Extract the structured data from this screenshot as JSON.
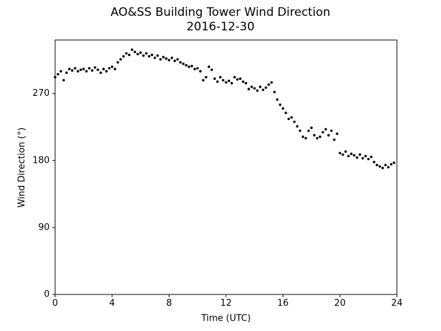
{
  "chart_data": {
    "type": "scatter",
    "title": "AO&SS Building Tower Wind Direction",
    "subtitle": "2016-12-30",
    "x_label": "Time (UTC)",
    "y_label": "Wind Direction (°)",
    "color": "#000000",
    "xlim": [
      0,
      24
    ],
    "xticks": [
      0,
      4,
      8,
      12,
      16,
      20,
      24
    ],
    "ylim": [
      0,
      342
    ],
    "yticks": [
      0,
      90,
      180,
      270
    ],
    "x": [
      0,
      0.2,
      0.4,
      0.6,
      0.8,
      1.0,
      1.2,
      1.4,
      1.6,
      1.8,
      2.0,
      2.2,
      2.4,
      2.6,
      2.8,
      3.0,
      3.2,
      3.4,
      3.6,
      3.8,
      4.0,
      4.2,
      4.4,
      4.6,
      4.8,
      5.0,
      5.2,
      5.4,
      5.6,
      5.8,
      6.0,
      6.2,
      6.4,
      6.6,
      6.8,
      7.0,
      7.2,
      7.4,
      7.6,
      7.8,
      8.0,
      8.2,
      8.4,
      8.6,
      8.8,
      9.0,
      9.2,
      9.4,
      9.6,
      9.8,
      10.0,
      10.2,
      10.4,
      10.6,
      10.8,
      11.0,
      11.2,
      11.4,
      11.6,
      11.8,
      12.0,
      12.2,
      12.4,
      12.6,
      12.8,
      13.0,
      13.2,
      13.4,
      13.6,
      13.8,
      14.0,
      14.2,
      14.4,
      14.6,
      14.8,
      15.0,
      15.2,
      15.4,
      15.6,
      15.8,
      16.0,
      16.2,
      16.4,
      16.6,
      16.8,
      17.0,
      17.2,
      17.4,
      17.6,
      17.8,
      18.0,
      18.2,
      18.4,
      18.6,
      18.8,
      19.0,
      19.2,
      19.4,
      19.6,
      19.8,
      20.0,
      20.2,
      20.4,
      20.6,
      20.8,
      21.0,
      21.2,
      21.4,
      21.6,
      21.8,
      22.0,
      22.2,
      22.4,
      22.6,
      22.8,
      23.0,
      23.2,
      23.4,
      23.6,
      23.8
    ],
    "values": [
      292,
      296,
      300,
      288,
      298,
      303,
      301,
      304,
      300,
      302,
      303,
      300,
      304,
      301,
      305,
      302,
      298,
      303,
      300,
      304,
      306,
      303,
      312,
      316,
      320,
      324,
      322,
      329,
      326,
      323,
      325,
      321,
      324,
      320,
      322,
      318,
      321,
      316,
      319,
      317,
      315,
      318,
      314,
      316,
      312,
      310,
      308,
      306,
      307,
      303,
      304,
      300,
      288,
      292,
      306,
      302,
      290,
      286,
      292,
      288,
      285,
      287,
      284,
      292,
      289,
      290,
      286,
      284,
      276,
      279,
      277,
      274,
      279,
      275,
      278,
      282,
      285,
      272,
      262,
      255,
      250,
      244,
      236,
      238,
      232,
      226,
      220,
      212,
      210,
      220,
      224,
      214,
      210,
      212,
      218,
      222,
      214,
      220,
      208,
      216,
      190,
      188,
      192,
      186,
      189,
      187,
      184,
      188,
      183,
      186,
      182,
      185,
      178,
      174,
      172,
      170,
      174,
      171,
      175,
      177
    ]
  }
}
